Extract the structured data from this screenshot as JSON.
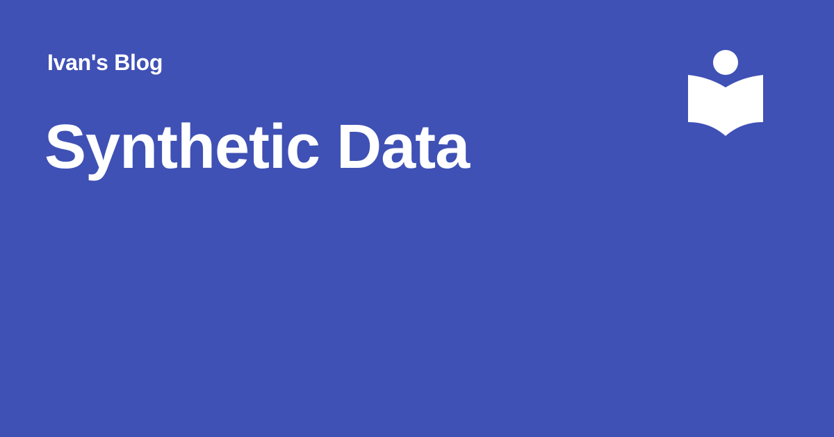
{
  "site": {
    "name": "Ivan's Blog",
    "logo_icon": "reader-book-icon"
  },
  "post": {
    "title": "Synthetic Data"
  },
  "colors": {
    "background": "#3f51b5",
    "foreground": "#ffffff"
  }
}
